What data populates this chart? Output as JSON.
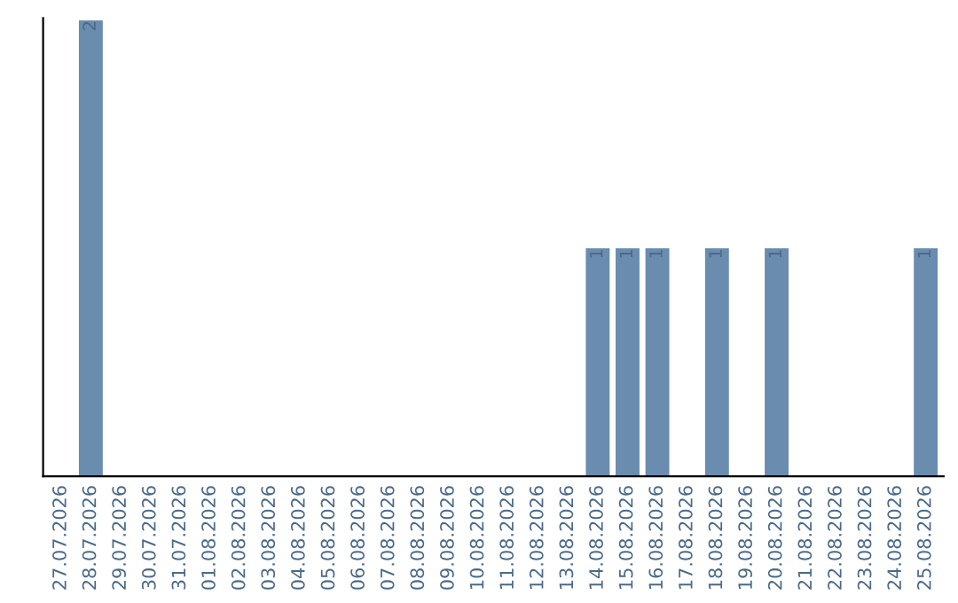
{
  "chart_data": {
    "type": "bar",
    "categories": [
      "27.07.2026",
      "28.07.2026",
      "29.07.2026",
      "30.07.2026",
      "31.07.2026",
      "01.08.2026",
      "02.08.2026",
      "03.08.2026",
      "04.08.2026",
      "05.08.2026",
      "06.08.2026",
      "07.08.2026",
      "08.08.2026",
      "09.08.2026",
      "10.08.2026",
      "11.08.2026",
      "12.08.2026",
      "13.08.2026",
      "14.08.2026",
      "15.08.2026",
      "16.08.2026",
      "17.08.2026",
      "18.08.2026",
      "19.08.2026",
      "20.08.2026",
      "21.08.2026",
      "22.08.2026",
      "23.08.2026",
      "24.08.2026",
      "25.08.2026"
    ],
    "values": [
      0,
      2,
      0,
      0,
      0,
      0,
      0,
      0,
      0,
      0,
      0,
      0,
      0,
      0,
      0,
      0,
      0,
      0,
      1,
      1,
      1,
      0,
      1,
      0,
      1,
      0,
      0,
      0,
      0,
      1
    ],
    "value_labels": [
      null,
      "2",
      null,
      null,
      null,
      null,
      null,
      null,
      null,
      null,
      null,
      null,
      null,
      null,
      null,
      null,
      null,
      null,
      "1",
      "1",
      "1",
      null,
      "1",
      null,
      "1",
      null,
      null,
      null,
      null,
      "1"
    ],
    "color": "#6a8caf",
    "tick_labels": "x",
    "grid": false,
    "legend": false
  }
}
